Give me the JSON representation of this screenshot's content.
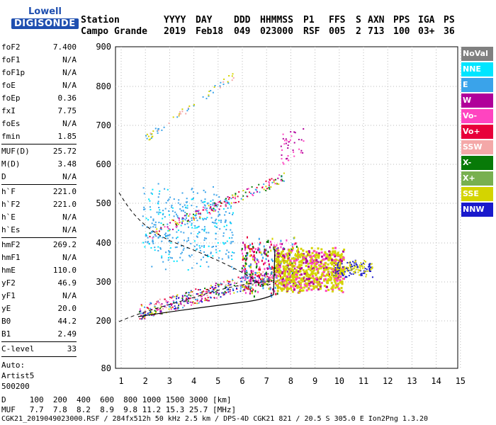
{
  "logo": {
    "line1": "Lowell",
    "line2": "DIGISONDE"
  },
  "header": {
    "row1": [
      "Station",
      "YYYY",
      "DAY",
      "DDD",
      "HHMMSS",
      "P1",
      "FFS",
      "S",
      "AXN",
      "PPS",
      "IGA",
      "PS"
    ],
    "row2": [
      "Campo Grande",
      "2019",
      "Feb18",
      "049",
      "023000",
      "RSF",
      "005",
      "2",
      "713",
      "100",
      "03+",
      "36"
    ]
  },
  "params": {
    "g1": [
      {
        "k": "foF2",
        "v": "7.400"
      },
      {
        "k": "foF1",
        "v": "N/A"
      },
      {
        "k": "foF1p",
        "v": "N/A"
      },
      {
        "k": "foE",
        "v": "N/A"
      },
      {
        "k": "foEp",
        "v": "0.36"
      },
      {
        "k": "fxI",
        "v": "7.75"
      },
      {
        "k": "foEs",
        "v": "N/A"
      },
      {
        "k": "fmin",
        "v": "1.85"
      }
    ],
    "g2": [
      {
        "k": "MUF(D)",
        "v": "25.72"
      },
      {
        "k": "M(D)",
        "v": "3.48"
      },
      {
        "k": "D",
        "v": "N/A"
      }
    ],
    "g3": [
      {
        "k": "h`F",
        "v": "221.0"
      },
      {
        "k": "h`F2",
        "v": "221.0"
      },
      {
        "k": "h`E",
        "v": "N/A"
      },
      {
        "k": "h`Es",
        "v": "N/A"
      }
    ],
    "g4": [
      {
        "k": "hmF2",
        "v": "269.2"
      },
      {
        "k": "hmF1",
        "v": "N/A"
      },
      {
        "k": "hmE",
        "v": "110.0"
      },
      {
        "k": "yF2",
        "v": "46.9"
      },
      {
        "k": "yF1",
        "v": "N/A"
      },
      {
        "k": "yE",
        "v": "20.0"
      },
      {
        "k": "B0",
        "v": "44.2"
      },
      {
        "k": "B1",
        "v": "2.49"
      }
    ],
    "g5": [
      {
        "k": "C-level",
        "v": "33"
      }
    ],
    "auto": [
      "Auto:",
      "Artist5",
      "500200"
    ]
  },
  "legend": [
    {
      "label": "NoVal",
      "color": "#808080"
    },
    {
      "label": "NNE",
      "color": "#00e5ff"
    },
    {
      "label": "E",
      "color": "#3aa3ea"
    },
    {
      "label": "W",
      "color": "#b0009a"
    },
    {
      "label": "Vo-",
      "color": "#ff44c0"
    },
    {
      "label": "Vo+",
      "color": "#e8003a"
    },
    {
      "label": "SSW",
      "color": "#f4a8a8"
    },
    {
      "label": "X-",
      "color": "#087a08"
    },
    {
      "label": "X+",
      "color": "#78b050"
    },
    {
      "label": "SSE",
      "color": "#d4d400"
    },
    {
      "label": "NNW",
      "color": "#1a1acc"
    }
  ],
  "chart_data": {
    "type": "scatter",
    "xlim": [
      1,
      15
    ],
    "ylim": [
      80,
      900
    ],
    "x_ticks": [
      "1",
      "2",
      "3",
      "4",
      "5",
      "6",
      "7",
      "8",
      "9",
      "10",
      "11",
      "12",
      "13",
      "14",
      "15"
    ],
    "y_ticks": [
      "900",
      "800",
      "700",
      "600",
      "500",
      "400",
      "300",
      "200",
      "80"
    ],
    "y_tick_values": [
      900,
      800,
      700,
      600,
      500,
      400,
      300,
      200,
      80
    ],
    "grid": true
  },
  "footer": {
    "line1": "D     100  200  400  600  800 1000 1500 3000 [km]",
    "line2": "MUF   7.7  7.8  8.2  8.9  9.8 11.2 15.3 25.7 [MHz]",
    "line3": "CGK21_2019049023000.RSF / 284fx512h 50 kHz 2.5 km / DPS-4D CGK21 821 / 20.5 S 305.0 E Ion2Png 1.3.20"
  }
}
